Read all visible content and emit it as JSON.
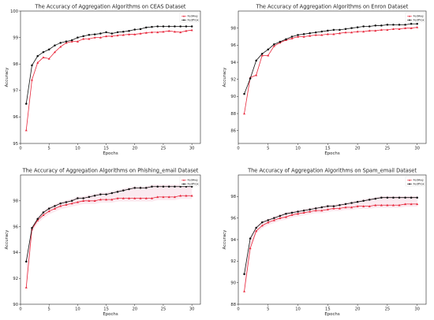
{
  "chart_data": [
    {
      "type": "line",
      "title": "The Accuracy of Aggregation Algorithms on CEAS Dataset",
      "xlabel": "Epochs",
      "ylabel": "Accuracy",
      "xlim": [
        0,
        31.5
      ],
      "ylim": [
        95,
        100
      ],
      "xticks": [
        "0",
        "5",
        "10",
        "15",
        "20",
        "25",
        "30"
      ],
      "yticks": [
        "95",
        "96",
        "97",
        "98",
        "99",
        "100"
      ],
      "legend": "top-right",
      "fill_band": false,
      "x": [
        1,
        2,
        3,
        4,
        5,
        6,
        7,
        8,
        9,
        10,
        11,
        12,
        13,
        14,
        15,
        16,
        17,
        18,
        19,
        20,
        21,
        22,
        23,
        24,
        25,
        26,
        27,
        28,
        29,
        30
      ],
      "series": [
        {
          "name": "FedAvg",
          "color": "#e8283c",
          "marker": "triangle",
          "values": [
            95.5,
            97.4,
            98.05,
            98.25,
            98.2,
            98.45,
            98.65,
            98.8,
            98.85,
            98.85,
            98.95,
            98.95,
            99.0,
            99.0,
            99.05,
            99.05,
            99.08,
            99.1,
            99.12,
            99.12,
            99.15,
            99.18,
            99.2,
            99.2,
            99.22,
            99.25,
            99.22,
            99.2,
            99.25,
            99.28
          ]
        },
        {
          "name": "FedProx",
          "color": "#111111",
          "marker": "circle",
          "values": [
            96.5,
            97.95,
            98.3,
            98.45,
            98.55,
            98.7,
            98.8,
            98.85,
            98.9,
            99.0,
            99.05,
            99.1,
            99.12,
            99.15,
            99.2,
            99.15,
            99.2,
            99.22,
            99.25,
            99.3,
            99.32,
            99.38,
            99.4,
            99.42,
            99.42,
            99.42,
            99.42,
            99.42,
            99.42,
            99.42
          ]
        }
      ]
    },
    {
      "type": "line",
      "title": "The Accuracy of Aggregation Algorithms on Enron Dataset",
      "xlabel": "Epochs",
      "ylabel": "Accuracy",
      "xlim": [
        0,
        31.5
      ],
      "ylim": [
        84.5,
        100
      ],
      "xticks": [
        "0",
        "5",
        "10",
        "15",
        "20",
        "25",
        "30"
      ],
      "yticks": [
        "86",
        "88",
        "90",
        "92",
        "94",
        "96",
        "98"
      ],
      "legend": "top-right",
      "fill_band": false,
      "x": [
        1,
        2,
        3,
        4,
        5,
        6,
        7,
        8,
        9,
        10,
        11,
        12,
        13,
        14,
        15,
        16,
        17,
        18,
        19,
        20,
        21,
        22,
        23,
        24,
        25,
        26,
        27,
        28,
        29,
        30
      ],
      "series": [
        {
          "name": "FedAvg",
          "color": "#e8283c",
          "marker": "triangle",
          "values": [
            88.0,
            92.2,
            92.5,
            94.8,
            94.8,
            95.9,
            96.3,
            96.6,
            96.8,
            97.0,
            97.0,
            97.1,
            97.2,
            97.2,
            97.3,
            97.3,
            97.4,
            97.5,
            97.5,
            97.6,
            97.6,
            97.7,
            97.7,
            97.8,
            97.8,
            97.9,
            97.9,
            98.0,
            98.0,
            98.1
          ]
        },
        {
          "name": "FedProx",
          "color": "#111111",
          "marker": "circle",
          "values": [
            90.3,
            92.1,
            94.2,
            95.0,
            95.5,
            96.1,
            96.4,
            96.7,
            97.0,
            97.2,
            97.3,
            97.4,
            97.5,
            97.6,
            97.7,
            97.8,
            97.8,
            97.9,
            98.0,
            98.1,
            98.2,
            98.2,
            98.3,
            98.3,
            98.4,
            98.4,
            98.4,
            98.4,
            98.5,
            98.5
          ]
        }
      ]
    },
    {
      "type": "line",
      "title": "The Accuracy of Aggregation Algorithms on Phishing_email Dataset",
      "xlabel": "Epochs",
      "ylabel": "Accuracy",
      "xlim": [
        0,
        31.5
      ],
      "ylim": [
        90,
        100
      ],
      "xticks": [
        "0",
        "5",
        "10",
        "15",
        "20",
        "25",
        "30"
      ],
      "yticks": [
        "90",
        "92",
        "94",
        "96",
        "98"
      ],
      "legend": "top-right",
      "fill_band": true,
      "x": [
        1,
        2,
        3,
        4,
        5,
        6,
        7,
        8,
        9,
        10,
        11,
        12,
        13,
        14,
        15,
        16,
        17,
        18,
        19,
        20,
        21,
        22,
        23,
        24,
        25,
        26,
        27,
        28,
        29,
        30
      ],
      "series": [
        {
          "name": "FedAvg",
          "color": "#e8283c",
          "marker": "triangle",
          "values": [
            91.3,
            95.8,
            96.5,
            96.9,
            97.2,
            97.4,
            97.6,
            97.7,
            97.8,
            97.9,
            98.0,
            98.0,
            98.0,
            98.1,
            98.1,
            98.1,
            98.2,
            98.2,
            98.2,
            98.2,
            98.2,
            98.2,
            98.2,
            98.3,
            98.3,
            98.3,
            98.3,
            98.4,
            98.4,
            98.4
          ]
        },
        {
          "name": "FedProx",
          "color": "#111111",
          "marker": "circle",
          "values": [
            93.3,
            95.9,
            96.6,
            97.1,
            97.4,
            97.6,
            97.8,
            97.9,
            98.0,
            98.2,
            98.2,
            98.3,
            98.4,
            98.5,
            98.5,
            98.6,
            98.7,
            98.8,
            98.9,
            99.0,
            99.0,
            99.0,
            99.1,
            99.1,
            99.1,
            99.1,
            99.1,
            99.1,
            99.1,
            99.1
          ]
        }
      ]
    },
    {
      "type": "line",
      "title": "The Accuracy of Aggregation Algorithms on Spam_email Dataset",
      "xlabel": "Epochs",
      "ylabel": "Accuracy",
      "xlim": [
        0,
        31.5
      ],
      "ylim": [
        88,
        100
      ],
      "xticks": [
        "0",
        "5",
        "10",
        "15",
        "20",
        "25",
        "30"
      ],
      "yticks": [
        "88",
        "90",
        "92",
        "94",
        "96",
        "98"
      ],
      "legend": "top-right",
      "fill_band": true,
      "x": [
        1,
        2,
        3,
        4,
        5,
        6,
        7,
        8,
        9,
        10,
        11,
        12,
        13,
        14,
        15,
        16,
        17,
        18,
        19,
        20,
        21,
        22,
        23,
        24,
        25,
        26,
        27,
        28,
        29,
        30
      ],
      "series": [
        {
          "name": "FedAvg",
          "color": "#e8283c",
          "marker": "triangle",
          "values": [
            89.2,
            93.2,
            94.8,
            95.3,
            95.6,
            95.8,
            96.0,
            96.1,
            96.3,
            96.4,
            96.5,
            96.6,
            96.7,
            96.7,
            96.8,
            96.9,
            96.9,
            97.0,
            97.0,
            97.1,
            97.1,
            97.1,
            97.2,
            97.2,
            97.2,
            97.2,
            97.2,
            97.3,
            97.3,
            97.3
          ]
        },
        {
          "name": "FedProx",
          "color": "#111111",
          "marker": "circle",
          "values": [
            90.8,
            94.1,
            95.1,
            95.6,
            95.8,
            96.0,
            96.2,
            96.4,
            96.5,
            96.6,
            96.7,
            96.8,
            96.9,
            97.0,
            97.1,
            97.1,
            97.2,
            97.3,
            97.4,
            97.5,
            97.6,
            97.7,
            97.8,
            97.9,
            97.9,
            97.9,
            97.9,
            97.9,
            97.9,
            97.9
          ]
        }
      ]
    }
  ]
}
